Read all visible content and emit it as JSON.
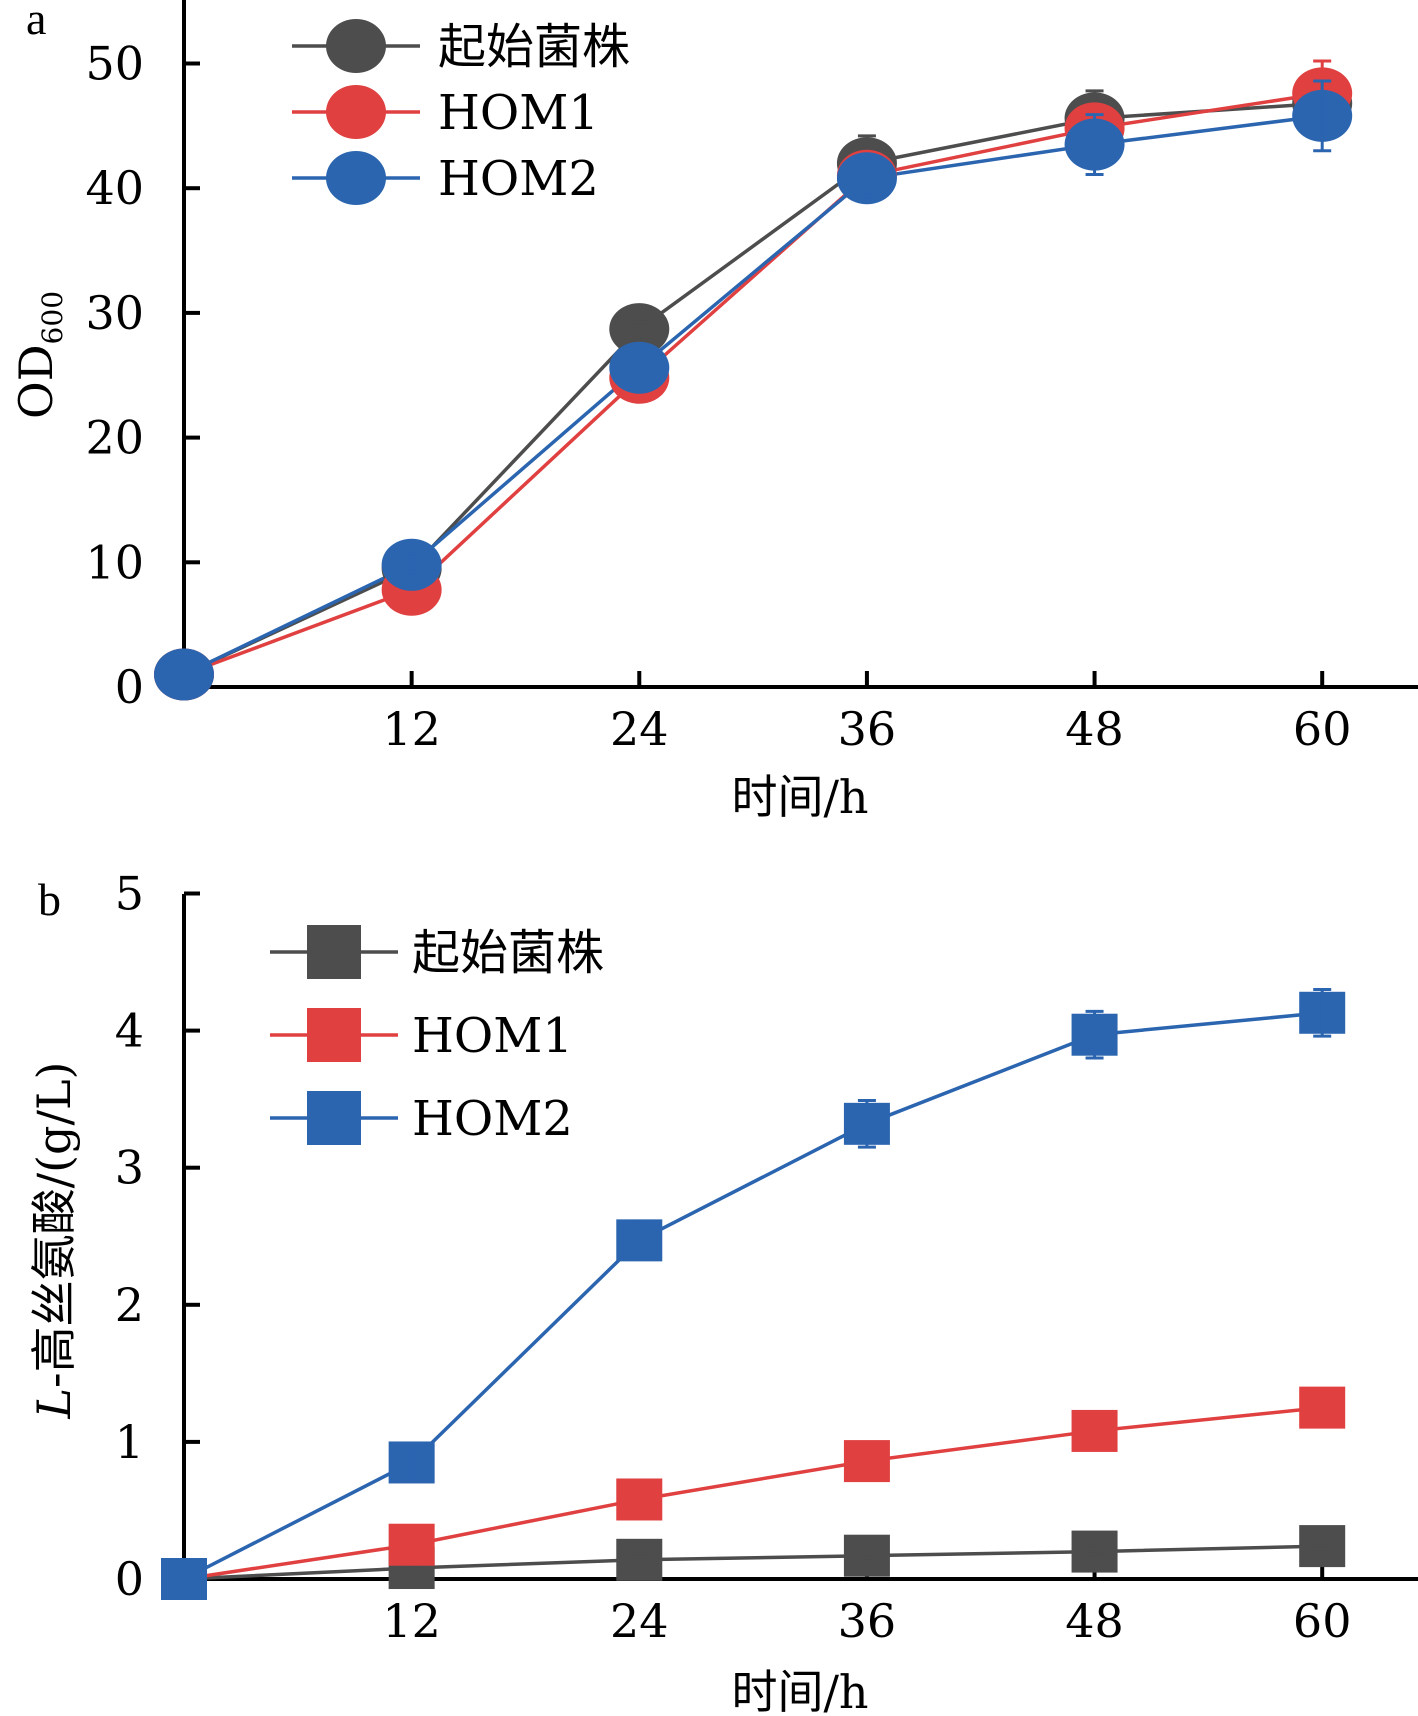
{
  "chart_data": [
    {
      "panel": "a",
      "type": "line",
      "marker": "circle",
      "title": "",
      "xlabel": "时间/h",
      "ylabel": "OD",
      "ylabel_subscript": "600",
      "x": [
        0,
        12,
        24,
        36,
        48,
        60
      ],
      "xticks": [
        "12",
        "24",
        "36",
        "48",
        "60"
      ],
      "xtick_values": [
        12,
        24,
        36,
        48,
        60
      ],
      "yticks": [
        "0",
        "10",
        "20",
        "30",
        "40",
        "50"
      ],
      "ytick_values": [
        0,
        10,
        20,
        30,
        40,
        50
      ],
      "xlim": [
        0,
        65
      ],
      "ylim": [
        0,
        55
      ],
      "grid": false,
      "legend_position": "top-left",
      "series": [
        {
          "name": "起始菌株",
          "color": "#4d4d4d",
          "values": [
            1.0,
            9.5,
            28.7,
            42.0,
            45.6,
            46.8
          ],
          "errors": [
            0.2,
            0.8,
            0.6,
            2.2,
            2.2,
            2.0
          ]
        },
        {
          "name": "HOM1",
          "color": "#e04040",
          "values": [
            1.0,
            7.8,
            24.8,
            41.0,
            44.8,
            47.6
          ],
          "errors": [
            0.2,
            0.6,
            0.6,
            1.2,
            1.4,
            2.6
          ]
        },
        {
          "name": "HOM2",
          "color": "#2b65b0",
          "values": [
            1.0,
            9.8,
            25.6,
            40.8,
            43.5,
            45.8
          ],
          "errors": [
            0.2,
            0.6,
            0.6,
            1.4,
            2.4,
            2.8
          ]
        }
      ]
    },
    {
      "panel": "b",
      "type": "line",
      "marker": "square",
      "title": "",
      "xlabel": "时间/h",
      "ylabel_italic": "L",
      "ylabel": "-高丝氨酸/(g/L)",
      "x": [
        0,
        12,
        24,
        36,
        48,
        60
      ],
      "xticks": [
        "12",
        "24",
        "36",
        "48",
        "60"
      ],
      "xtick_values": [
        12,
        24,
        36,
        48,
        60
      ],
      "yticks": [
        "0",
        "1",
        "2",
        "3",
        "4",
        "5"
      ],
      "ytick_values": [
        0,
        1,
        2,
        3,
        4,
        5
      ],
      "xlim": [
        0,
        65
      ],
      "ylim": [
        0,
        5
      ],
      "grid": false,
      "legend_position": "top-left",
      "series": [
        {
          "name": "起始菌株",
          "color": "#4d4d4d",
          "values": [
            0.0,
            0.08,
            0.14,
            0.17,
            0.2,
            0.24
          ],
          "errors": [
            0.0,
            0.02,
            0.02,
            0.02,
            0.02,
            0.02
          ]
        },
        {
          "name": "HOM1",
          "color": "#e04040",
          "values": [
            0.0,
            0.25,
            0.58,
            0.86,
            1.08,
            1.25
          ],
          "errors": [
            0.0,
            0.03,
            0.04,
            0.04,
            0.06,
            0.05
          ]
        },
        {
          "name": "HOM2",
          "color": "#2b65b0",
          "values": [
            0.0,
            0.85,
            2.47,
            3.32,
            3.97,
            4.13
          ],
          "errors": [
            0.0,
            0.12,
            0.14,
            0.17,
            0.17,
            0.17
          ]
        }
      ]
    }
  ]
}
